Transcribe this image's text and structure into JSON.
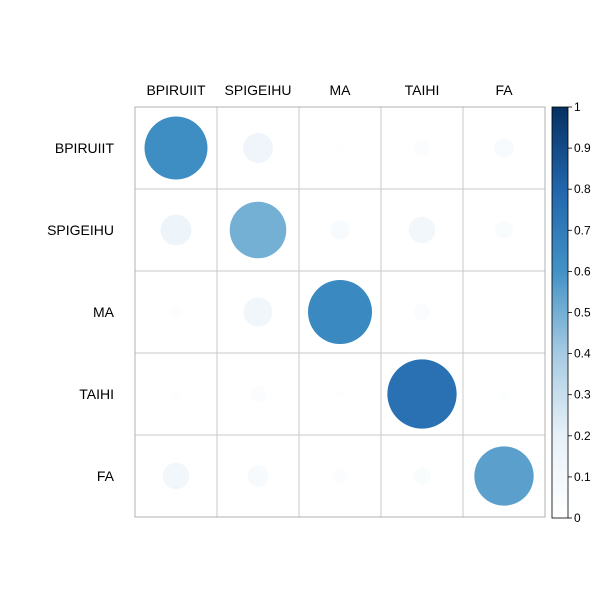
{
  "chart_data": {
    "type": "heatmap",
    "style": "circle-correlation-matrix",
    "title": "",
    "xlabel": "",
    "ylabel": "",
    "rows": [
      "BPIRUIIT",
      "SPIGEIHU",
      "MA",
      "TAIHI",
      "FA"
    ],
    "columns": [
      "BPIRUIIT",
      "SPIGEIHU",
      "MA",
      "TAIHI",
      "FA"
    ],
    "values": [
      [
        0.62,
        0.14,
        0.01,
        0.04,
        0.06
      ],
      [
        0.15,
        0.5,
        0.06,
        0.11,
        0.05
      ],
      [
        0.03,
        0.13,
        0.64,
        0.04,
        0.01
      ],
      [
        0.02,
        0.04,
        0.01,
        0.75,
        0.02
      ],
      [
        0.11,
        0.07,
        0.04,
        0.05,
        0.55
      ]
    ],
    "colorbar": {
      "range": [
        0,
        1
      ],
      "ticks": [
        "0",
        "0.1",
        "0.2",
        "0.3",
        "0.4",
        "0.5",
        "0.6",
        "0.7",
        "0.8",
        "0.9",
        "1"
      ],
      "low_color": "#ffffff",
      "high_color": "#053061",
      "placement": "right"
    },
    "grid": true
  }
}
